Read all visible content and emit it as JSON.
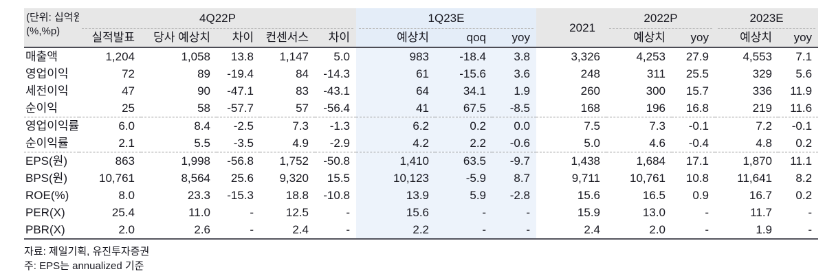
{
  "unit_label": {
    "line1": "(단위: 십억원,",
    "line2": "(%,%p)"
  },
  "header": {
    "groups": [
      {
        "label": "4Q22P"
      },
      {
        "label": "1Q23E"
      },
      {
        "label": "2021"
      },
      {
        "label": "2022P"
      },
      {
        "label": "2023E"
      }
    ],
    "columns": [
      "실적발표",
      "당사 예상치",
      "차이",
      "컨센서스",
      "차이",
      "예상치",
      "qoq",
      "yoy",
      "예상치",
      "yoy",
      "예상치",
      "yoy"
    ]
  },
  "table": {
    "rows": [
      {
        "label": "매출액",
        "cells": [
          "1,204",
          "1,058",
          "13.8",
          "1,147",
          "5.0",
          "983",
          "-18.4",
          "3.8",
          "3,326",
          "4,253",
          "27.9",
          "4,553",
          "7.1"
        ]
      },
      {
        "label": "영업이익",
        "cells": [
          "72",
          "89",
          "-19.4",
          "84",
          "-14.3",
          "61",
          "-15.6",
          "3.6",
          "248",
          "311",
          "25.5",
          "329",
          "5.6"
        ]
      },
      {
        "label": "세전이익",
        "cells": [
          "47",
          "90",
          "-47.1",
          "83",
          "-43.1",
          "64",
          "34.1",
          "1.9",
          "260",
          "300",
          "15.7",
          "336",
          "11.9"
        ]
      },
      {
        "label": "순이익",
        "cells": [
          "25",
          "58",
          "-57.7",
          "57",
          "-56.4",
          "41",
          "67.5",
          "-8.5",
          "168",
          "196",
          "16.8",
          "219",
          "11.6"
        ],
        "sep_after": "dashed"
      },
      {
        "label": "영업이익률",
        "cells": [
          "6.0",
          "8.4",
          "-2.5",
          "7.3",
          "-1.3",
          "6.2",
          "0.2",
          "0.0",
          "7.5",
          "7.3",
          "-0.1",
          "7.2",
          "-0.1"
        ]
      },
      {
        "label": "순이익률",
        "cells": [
          "2.1",
          "5.5",
          "-3.5",
          "4.9",
          "-2.9",
          "4.2",
          "2.2",
          "-0.6",
          "5.0",
          "4.6",
          "-0.4",
          "4.8",
          "0.2"
        ],
        "sep_after": "dashed"
      },
      {
        "label": "EPS(원)",
        "cells": [
          "863",
          "1,998",
          "-56.8",
          "1,752",
          "-50.8",
          "1,410",
          "63.5",
          "-9.7",
          "1,438",
          "1,684",
          "17.1",
          "1,870",
          "11.1"
        ]
      },
      {
        "label": "BPS(원)",
        "cells": [
          "10,761",
          "8,564",
          "25.6",
          "9,320",
          "15.5",
          "10,123",
          "-5.9",
          "8.7",
          "9,711",
          "10,761",
          "10.8",
          "11,641",
          "8.2"
        ]
      },
      {
        "label": "ROE(%)",
        "cells": [
          "8.0",
          "23.3",
          "-15.3",
          "18.8",
          "-10.8",
          "13.9",
          "5.9",
          "-2.8",
          "15.6",
          "16.5",
          "0.9",
          "16.7",
          "0.2"
        ]
      },
      {
        "label": "PER(X)",
        "cells": [
          "25.4",
          "11.0",
          "-",
          "12.5",
          "-",
          "15.6",
          "-",
          "-",
          "15.9",
          "13.0",
          "-",
          "11.7",
          "-"
        ]
      },
      {
        "label": "PBR(X)",
        "cells": [
          "2.0",
          "2.6",
          "-",
          "2.4",
          "-",
          "2.2",
          "-",
          "-",
          "2.4",
          "2.0",
          "-",
          "1.9",
          "-"
        ]
      }
    ]
  },
  "footer": {
    "source": "자료: 제일기획, 유진투자증권",
    "note": "주: EPS는 annualized 기준"
  },
  "colors": {
    "header_bg": "#e7e7e7",
    "highlight_header_bg": "#e4edf8",
    "highlight_body_bg": "#edf3fb",
    "rule_dark": "#4c4c55"
  }
}
